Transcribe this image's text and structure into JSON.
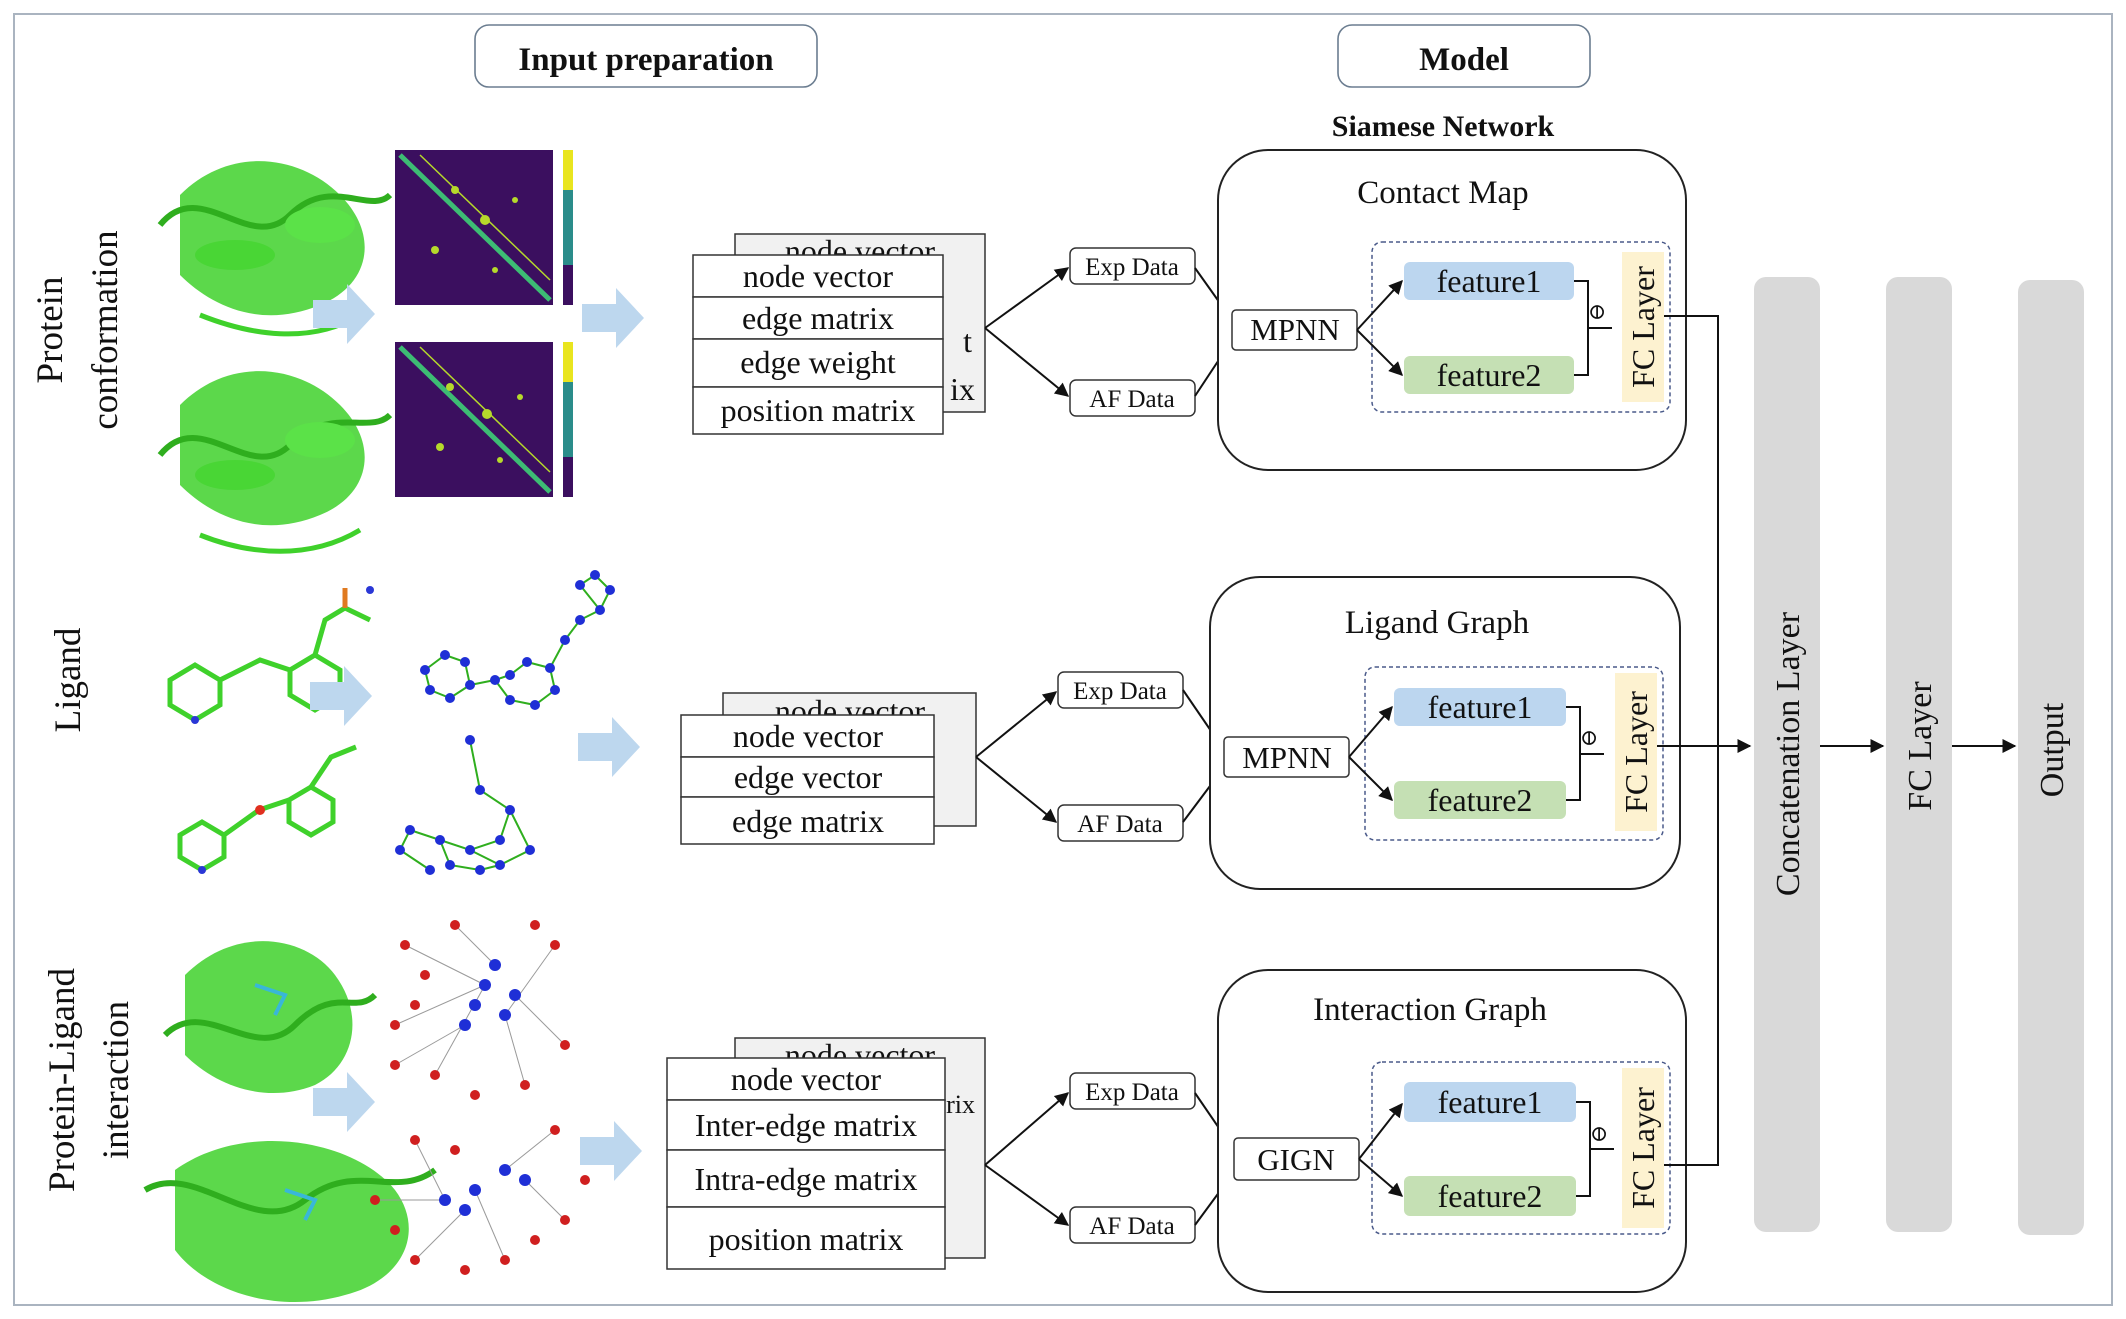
{
  "sections": {
    "input_preparation": "Input preparation",
    "model": "Model",
    "siamese_network": "Siamese Network"
  },
  "row_labels": {
    "protein_line1": "Protein",
    "protein_line2": "conformation",
    "ligand": "Ligand",
    "interaction_line1": "Protein-Ligand",
    "interaction_line2": "interaction"
  },
  "protein_stack": {
    "front": [
      "node vector",
      "edge matrix",
      "edge weight",
      "position matrix"
    ],
    "back_fragments": [
      "node vector",
      "t",
      "ix"
    ]
  },
  "ligand_stack": {
    "front": [
      "node vector",
      "edge vector",
      "edge matrix"
    ],
    "back_fragments": [
      "node vector"
    ]
  },
  "interaction_stack": {
    "front": [
      "node vector",
      "Inter-edge matrix",
      "Intra-edge matrix",
      "position matrix"
    ],
    "back_fragments": [
      "node vector",
      "rix"
    ]
  },
  "data_sources": {
    "exp": "Exp Data",
    "af": "AF Data"
  },
  "branches": {
    "contact_map": {
      "title": "Contact Map",
      "encoder": "MPNN"
    },
    "ligand_graph": {
      "title": "Ligand Graph",
      "encoder": "MPNN"
    },
    "interaction_graph": {
      "title": "Interaction Graph",
      "encoder": "GIGN"
    }
  },
  "features": {
    "f1": "feature1",
    "f2": "feature2",
    "operator": "⊖",
    "fc": "FC Layer"
  },
  "head": {
    "concat": "Concatenation Layer",
    "fc": "FC Layer",
    "output": "Output"
  },
  "colors": {
    "feature1": "#bcd6ef",
    "feature2": "#c5e0b4",
    "fc_layer": "#fdf2d0",
    "head_columns": "#d9d9d9",
    "flow_arrow": "#bdd7ee",
    "protein": "#3fd12b",
    "ligand_node": "#1f2fd6",
    "protein_node": "#d01f1f",
    "heatmap_bg": "#3b0f5f",
    "heatmap_diag": "#3dbc74"
  },
  "icons": [
    "protein-structure-icon",
    "contact-map-heatmap-icon",
    "ligand-molecule-icon",
    "molecular-graph-icon",
    "interaction-graph-icon"
  ]
}
